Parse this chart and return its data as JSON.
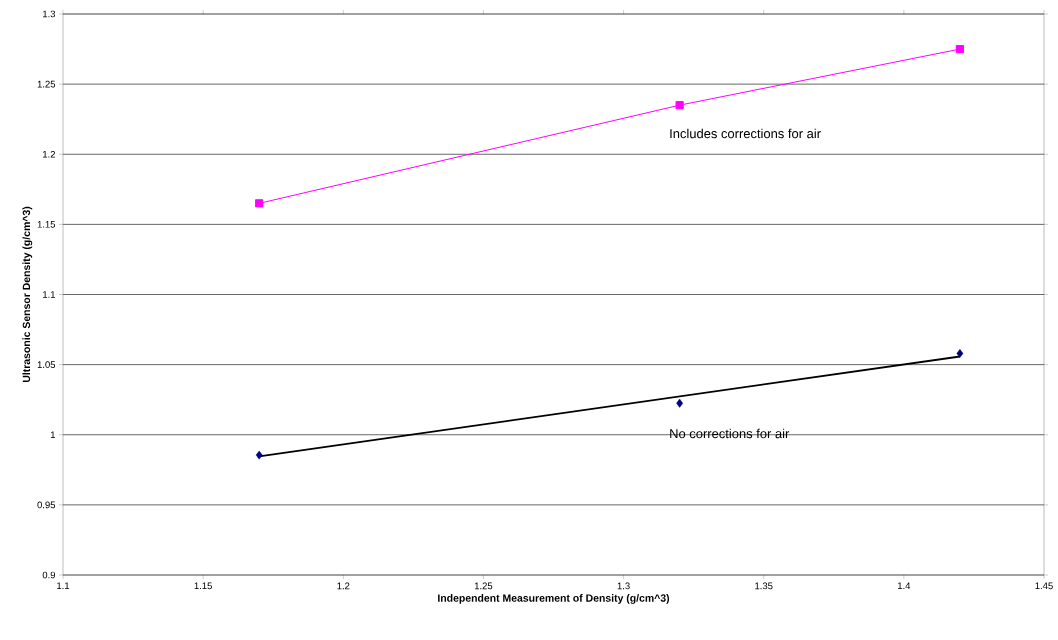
{
  "chart_data": {
    "type": "line",
    "xlabel": "Independent Measurement of Density (g/cm^3)",
    "ylabel": "Ultrasonic Sensor Density (g/cm^3)",
    "series": [
      {
        "name": "Includes corrections for air",
        "color": "#ff00ff",
        "marker": "square",
        "x": [
          1.17,
          1.32,
          1.42
        ],
        "values": [
          1.165,
          1.235,
          1.275
        ]
      },
      {
        "name": "No corrections for air",
        "type": "scatter",
        "color": "#000080",
        "marker": "diamond",
        "x": [
          1.17,
          1.32,
          1.42
        ],
        "values": [
          0.9855,
          1.0225,
          1.058
        ]
      },
      {
        "type": "line",
        "color": "#000000",
        "marker": "none",
        "x": [
          1.17,
          1.42
        ],
        "values": [
          0.9846,
          1.0558
        ]
      }
    ],
    "xlim": [
      1.1,
      1.45
    ],
    "xticks": [
      1.1,
      1.15,
      1.2,
      1.25,
      1.3,
      1.35,
      1.4,
      1.45
    ],
    "ylim": [
      0.9,
      1.3
    ],
    "yticks": [
      0.9,
      0.95,
      1,
      1.05,
      1.1,
      1.15,
      1.2,
      1.25,
      1.3
    ],
    "grid": "y"
  }
}
